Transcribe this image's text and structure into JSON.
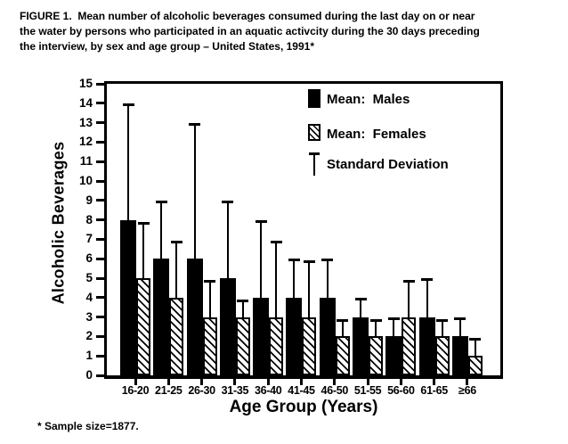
{
  "figure": {
    "title_lines": [
      "FIGURE 1.  Mean number of alcoholic beverages consumed during the last day on or near",
      "the water by persons who participated in an aquatic activcity during the 30 days preceding",
      "the interview, by sex and age group – United States, 1991*"
    ],
    "footnote": "* Sample size=1877."
  },
  "chart_data": {
    "type": "bar",
    "title": "Mean number of alcoholic beverages consumed during the last day on or near the water by persons who participated in an aquatic activcity during the 30 days preceding the interview, by sex and age group – United States, 1991",
    "categories": [
      "16-20",
      "21-25",
      "26-30",
      "31-35",
      "36-40",
      "41-45",
      "46-50",
      "51-55",
      "56-60",
      "61-65",
      "≥66"
    ],
    "series": [
      {
        "name": "Mean:  Males",
        "fill": "solid-black",
        "values": [
          8,
          6,
          6,
          5,
          4,
          4,
          4,
          3,
          2,
          3,
          2
        ],
        "sd_whisker_top": [
          14,
          9,
          13,
          9,
          8,
          6,
          6,
          4,
          3,
          5,
          3
        ]
      },
      {
        "name": "Mean:  Females",
        "fill": "diagonal-hatch",
        "values": [
          5,
          4,
          3,
          3,
          3,
          3,
          2,
          2,
          3,
          2,
          1
        ],
        "sd_whisker_top": [
          8,
          7,
          5,
          4,
          7,
          6,
          3,
          3,
          5,
          3,
          2
        ]
      }
    ],
    "error_bars": "standard deviation, upper whisker only",
    "legend": {
      "position": "inside-top-right",
      "items": [
        "Mean:  Males",
        "Mean:  Females",
        "Standard Deviation"
      ]
    },
    "xlabel": "Age Group (Years)",
    "ylabel": "Alcoholic Beverages",
    "ylim": [
      0,
      15
    ],
    "ytick_step": 1,
    "grid": false
  },
  "colors": {
    "ink": "#000000",
    "paper": "#ffffff"
  }
}
